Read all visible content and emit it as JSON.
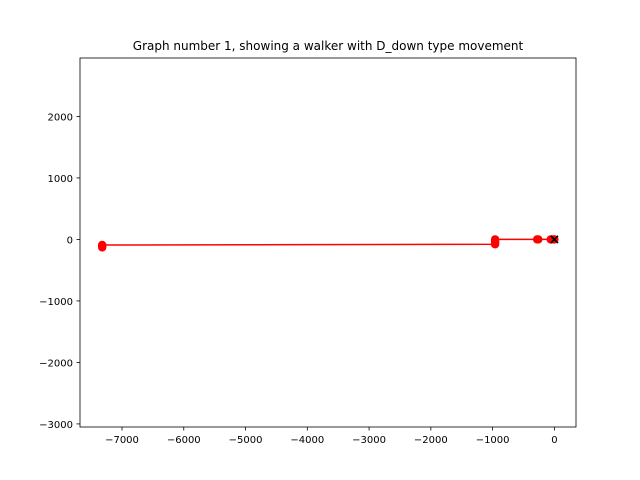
{
  "chart_data": {
    "type": "line",
    "title": "Graph number 1, showing a walker with D_down type movement",
    "xlabel": "",
    "ylabel": "",
    "xlim": [
      -7680,
      350
    ],
    "ylim": [
      -3050,
      2950
    ],
    "x_ticks": [
      -7000,
      -6000,
      -5000,
      -4000,
      -3000,
      -2000,
      -1000,
      0
    ],
    "y_ticks": [
      -3000,
      -2000,
      -1000,
      0,
      1000,
      2000
    ],
    "grid": false,
    "legend": "none",
    "series": [
      {
        "color": "#ff0000",
        "marker": "circle",
        "points": [
          [
            0,
            0
          ],
          [
            -10,
            0
          ],
          [
            -40,
            0
          ],
          [
            -60,
            0
          ],
          [
            -260,
            0
          ],
          [
            -280,
            0
          ],
          [
            -960,
            0
          ],
          [
            -960,
            -20
          ],
          [
            -960,
            -40
          ],
          [
            -960,
            -60
          ],
          [
            -960,
            -80
          ],
          [
            -7320,
            -90
          ],
          [
            -7320,
            -110
          ],
          [
            -7320,
            -130
          ]
        ]
      }
    ],
    "end_marker": {
      "x": 0,
      "y": 0,
      "symbol": "x",
      "color": "#000000"
    }
  }
}
